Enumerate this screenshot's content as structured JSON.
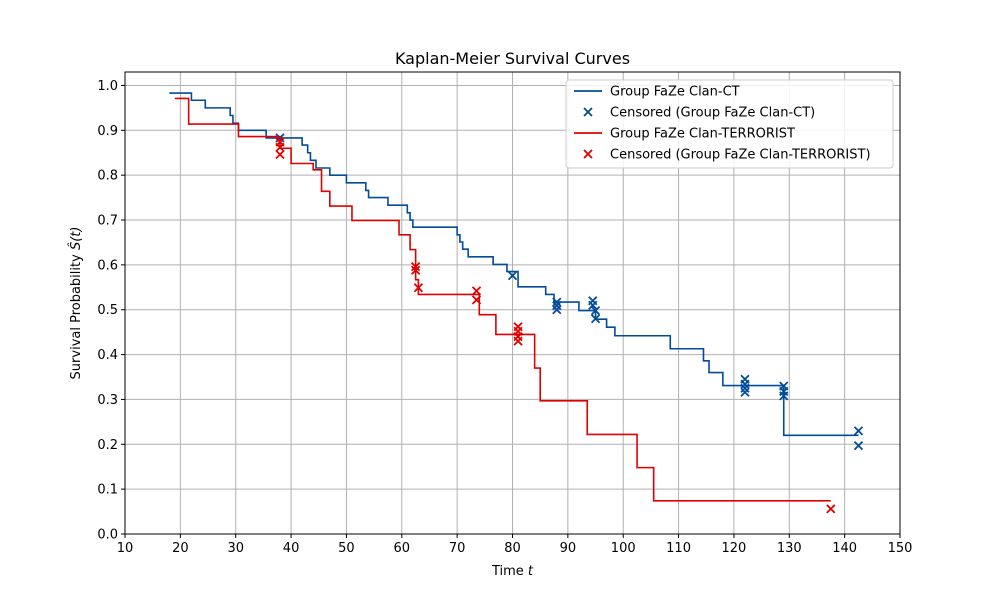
{
  "chart_data": {
    "type": "line",
    "title": "Kaplan-Meier Survival Curves",
    "xlabel": "Time t",
    "ylabel": "Survival Probability Ŝ(t)",
    "xlim": [
      10,
      150
    ],
    "ylim": [
      0.0,
      1.03
    ],
    "xticks": [
      10,
      20,
      30,
      40,
      50,
      60,
      70,
      80,
      90,
      100,
      110,
      120,
      130,
      140,
      150
    ],
    "yticks": [
      0.0,
      0.1,
      0.2,
      0.3,
      0.4,
      0.5,
      0.6,
      0.7,
      0.8,
      0.9,
      1.0
    ],
    "grid": true,
    "legend_position": "top-right",
    "series": [
      {
        "name": "Group FaZe Clan-CT",
        "color": "#004c99",
        "steps": [
          [
            18,
            0.983
          ],
          [
            22,
            0.967
          ],
          [
            24.5,
            0.95
          ],
          [
            29,
            0.933
          ],
          [
            29.5,
            0.916
          ],
          [
            30.5,
            0.9
          ],
          [
            35.5,
            0.883
          ],
          [
            42,
            0.867
          ],
          [
            43,
            0.85
          ],
          [
            43.5,
            0.833
          ],
          [
            44.5,
            0.816
          ],
          [
            47,
            0.8
          ],
          [
            50,
            0.783
          ],
          [
            53.5,
            0.766
          ],
          [
            54,
            0.75
          ],
          [
            57.5,
            0.733
          ],
          [
            61,
            0.716
          ],
          [
            61.5,
            0.7
          ],
          [
            62,
            0.684
          ],
          [
            70,
            0.667
          ],
          [
            70.5,
            0.651
          ],
          [
            71,
            0.635
          ],
          [
            72,
            0.618
          ],
          [
            76.5,
            0.601
          ],
          [
            79,
            0.585
          ],
          [
            81,
            0.551
          ],
          [
            86,
            0.534
          ],
          [
            87.5,
            0.517
          ],
          [
            92,
            0.498
          ],
          [
            95,
            0.479
          ],
          [
            97,
            0.461
          ],
          [
            98.5,
            0.442
          ],
          [
            108.5,
            0.413
          ],
          [
            114.5,
            0.386
          ],
          [
            115.5,
            0.36
          ],
          [
            118,
            0.331
          ],
          [
            129,
            0.22
          ],
          [
            142.5,
            0.22
          ]
        ],
        "censored": [
          [
            38,
            0.883
          ],
          [
            80,
            0.576
          ],
          [
            88,
            0.517
          ],
          [
            88,
            0.509
          ],
          [
            88,
            0.5
          ],
          [
            94.5,
            0.52
          ],
          [
            94.5,
            0.51
          ],
          [
            95,
            0.498
          ],
          [
            95,
            0.48
          ],
          [
            122,
            0.345
          ],
          [
            122,
            0.334
          ],
          [
            122,
            0.325
          ],
          [
            122,
            0.316
          ],
          [
            129,
            0.33
          ],
          [
            129,
            0.318
          ],
          [
            129,
            0.308
          ],
          [
            142.5,
            0.23
          ],
          [
            142.5,
            0.197
          ]
        ]
      },
      {
        "name": "Group FaZe Clan-TERRORIST",
        "color": "#e00000",
        "steps": [
          [
            19,
            0.971
          ],
          [
            21.5,
            0.914
          ],
          [
            30.5,
            0.886
          ],
          [
            38,
            0.86
          ],
          [
            40,
            0.826
          ],
          [
            44,
            0.812
          ],
          [
            45.5,
            0.764
          ],
          [
            47,
            0.731
          ],
          [
            51,
            0.699
          ],
          [
            59.5,
            0.667
          ],
          [
            61.5,
            0.634
          ],
          [
            62.5,
            0.6
          ],
          [
            62.5,
            0.567
          ],
          [
            63,
            0.534
          ],
          [
            74,
            0.489
          ],
          [
            77,
            0.445
          ],
          [
            84,
            0.37
          ],
          [
            85,
            0.297
          ],
          [
            93.5,
            0.222
          ],
          [
            102.5,
            0.148
          ],
          [
            105.5,
            0.074
          ],
          [
            137.5,
            0.074
          ]
        ],
        "censored": [
          [
            38,
            0.874
          ],
          [
            38,
            0.862
          ],
          [
            38,
            0.846
          ],
          [
            62.5,
            0.596
          ],
          [
            62.5,
            0.588
          ],
          [
            63,
            0.549
          ],
          [
            73.5,
            0.542
          ],
          [
            73.5,
            0.522
          ],
          [
            81,
            0.462
          ],
          [
            81,
            0.452
          ],
          [
            81,
            0.44
          ],
          [
            81,
            0.43
          ],
          [
            137.5,
            0.056
          ]
        ]
      }
    ],
    "legend": [
      {
        "label": "Group FaZe Clan-CT",
        "marker": "line",
        "color": "#004c99"
      },
      {
        "label": "Censored (Group FaZe Clan-CT)",
        "marker": "x",
        "color": "#004c99"
      },
      {
        "label": "Group FaZe Clan-TERRORIST",
        "marker": "line",
        "color": "#e00000"
      },
      {
        "label": "Censored (Group FaZe Clan-TERRORIST)",
        "marker": "x",
        "color": "#e00000"
      }
    ]
  }
}
